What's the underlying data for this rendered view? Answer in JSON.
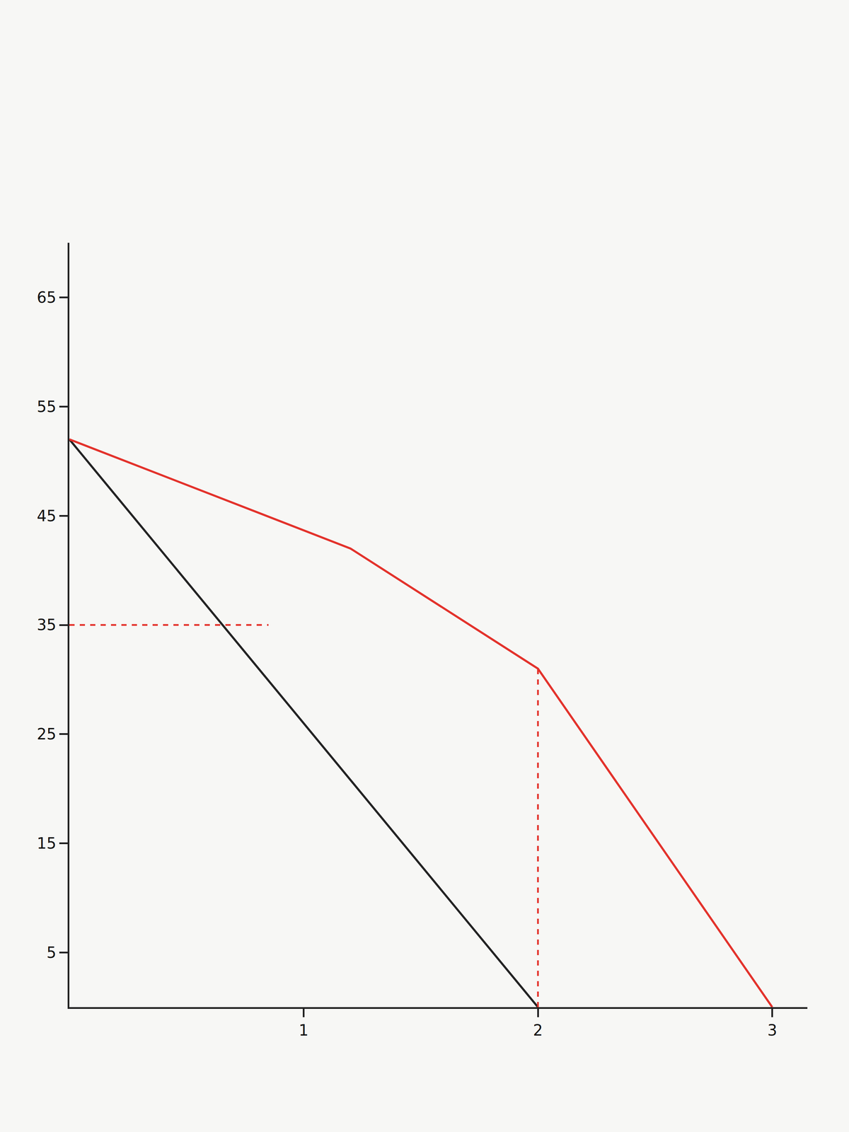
{
  "chart_data": {
    "type": "line",
    "series": [
      {
        "color": "#222222",
        "line_style": "solid",
        "x": [
          0,
          2
        ],
        "values": [
          52,
          0
        ]
      },
      {
        "color": "#e3322b",
        "line_style": "solid",
        "x": [
          0,
          1.2,
          2,
          3
        ],
        "values": [
          52,
          42,
          31,
          0
        ]
      },
      {
        "color": "#e3322b",
        "line_style": "dash",
        "x": [
          0,
          0.85
        ],
        "values": [
          35,
          35
        ]
      },
      {
        "color": "#e3322b",
        "line_style": "dash",
        "x": [
          2,
          2
        ],
        "values": [
          0,
          31
        ]
      }
    ],
    "xlim": [
      0,
      3.15
    ],
    "xticks": [
      1,
      2,
      3
    ],
    "ylim": [
      0,
      70
    ],
    "yticks": [
      5,
      15,
      25,
      35,
      45,
      55,
      65
    ],
    "grid": false
  }
}
